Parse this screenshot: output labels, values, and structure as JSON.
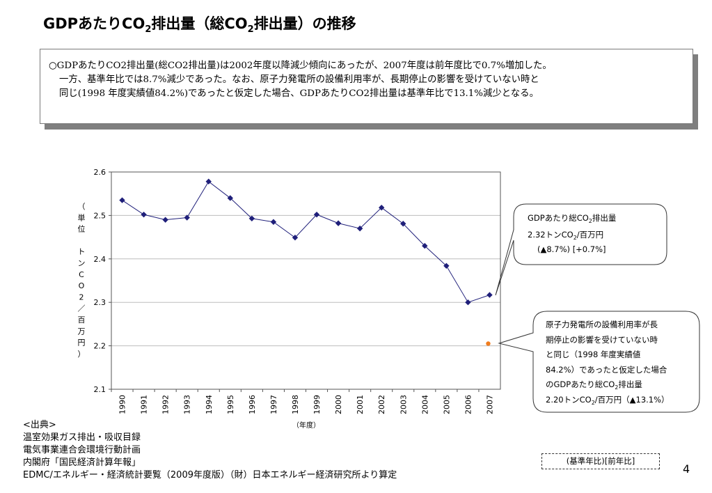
{
  "title": {
    "prefix": "GDPあたりCO",
    "sub1": "2",
    "middle": "排出量（総CO",
    "sub2": "2",
    "suffix": "排出量）の推移"
  },
  "summary": {
    "line1": "○GDPあたりCO2排出量(総CO2排出量)は2002年度以降減少傾向にあったが、2007年度は前年度比で0.7%増加した。",
    "line2": "一方、基準年比では8.7%減少であった。なお、原子力発電所の設備利用率が、長期停止の影響を受けていない時と",
    "line3": "同じ(1998 年度実績値84.2%)であったと仮定した場合、GDPあたりCO2排出量は基準年比で13.1%減少となる。"
  },
  "chart_data": {
    "type": "line",
    "categories": [
      "1990",
      "1991",
      "1992",
      "1993",
      "1994",
      "1995",
      "1996",
      "1997",
      "1998",
      "1999",
      "2000",
      "2001",
      "2002",
      "2003",
      "2004",
      "2005",
      "2006",
      "2007"
    ],
    "series": [
      {
        "values": [
          2.535,
          2.502,
          2.49,
          2.495,
          2.578,
          2.54,
          2.493,
          2.485,
          2.449,
          2.502,
          2.482,
          2.47,
          2.518,
          2.481,
          2.43,
          2.384,
          2.3,
          2.317
        ],
        "color": "#1f1f7a"
      }
    ],
    "extra_point": {
      "x": "2007",
      "value": 2.205,
      "color": "#f07c1e"
    },
    "ylim": [
      2.1,
      2.6
    ],
    "yticks": [
      "2.6",
      "2.5",
      "2.4",
      "2.3",
      "2.2",
      "2.1"
    ],
    "ylabel_chars": [
      "（",
      "単",
      "位",
      "",
      "ト",
      "ン",
      "C",
      "O",
      "2",
      "／",
      "百",
      "万",
      "円",
      "）"
    ],
    "xlabel": "（年度）",
    "grid": true,
    "callouts": {
      "main": {
        "line1_prefix": "GDPあたり総CO",
        "line1_sub": "2",
        "line1_suffix": "排出量",
        "line2_prefix": "2.32トンCO",
        "line2_sub": "2",
        "line2_suffix": "/百万円",
        "line3": "(▲8.7%) [+0.7%]"
      },
      "nuclear": {
        "line1": "原子力発電所の設備利用率が長",
        "line2": "期停止の影響を受けていない時",
        "line3": "と同じ（1998 年度実績値",
        "line4": "84.2%）であったと仮定した場合",
        "line5_prefix": "のGDPあたり総CO",
        "line5_sub": "2",
        "line5_suffix": "排出量",
        "line6_prefix": "2.20トンCO",
        "line6_sub": "2",
        "line6_suffix": "/百万円（▲13.1%）"
      }
    }
  },
  "sources": {
    "heading": "<出典>",
    "items": [
      "温室効果ガス排出・吸収目録",
      "電気事業連合会環境行動計画",
      "内閣府「国民経済計算年報」",
      "EDMC/エネルギー・経済統計要覧（2009年度版）（財）日本エネルギー経済研究所より算定"
    ]
  },
  "legend_note": "(基準年比)[前年比]",
  "page_number": "4"
}
